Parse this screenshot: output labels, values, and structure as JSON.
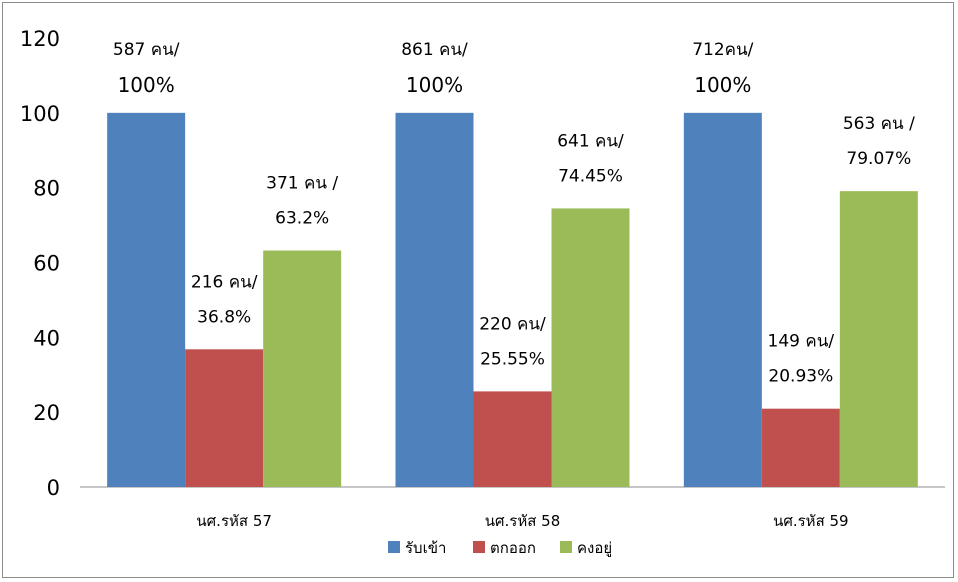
{
  "chart_data": {
    "type": "bar",
    "ylim": [
      0,
      120
    ],
    "yticks": [
      "0",
      "20",
      "40",
      "60",
      "80",
      "100",
      "120"
    ],
    "categories": [
      "นศ.รหัส 57",
      "นศ.รหัส 58",
      "นศ.รหัส 59"
    ],
    "series": [
      {
        "name": "รับเข้า",
        "color": "#4f81bd",
        "values": [
          100,
          100,
          100
        ],
        "labels": [
          [
            "587 คน/",
            "100%"
          ],
          [
            "861 คน/",
            "100%"
          ],
          [
            "712คน/",
            "100%"
          ]
        ]
      },
      {
        "name": "ตกออก",
        "color": "#c0504d",
        "values": [
          36.8,
          25.55,
          20.93
        ],
        "labels": [
          [
            "216 คน/",
            "36.8%"
          ],
          [
            "220 คน/",
            "25.55%"
          ],
          [
            "149 คน/",
            "20.93%"
          ]
        ]
      },
      {
        "name": "คงอยู่",
        "color": "#9bbb59",
        "values": [
          63.2,
          74.45,
          79.07
        ],
        "labels": [
          [
            "371 คน /",
            "63.2%"
          ],
          [
            "641 คน/",
            "74.45%"
          ],
          [
            "563 คน /",
            "79.07%"
          ]
        ]
      }
    ],
    "legend_position": "bottom",
    "grid": false
  }
}
